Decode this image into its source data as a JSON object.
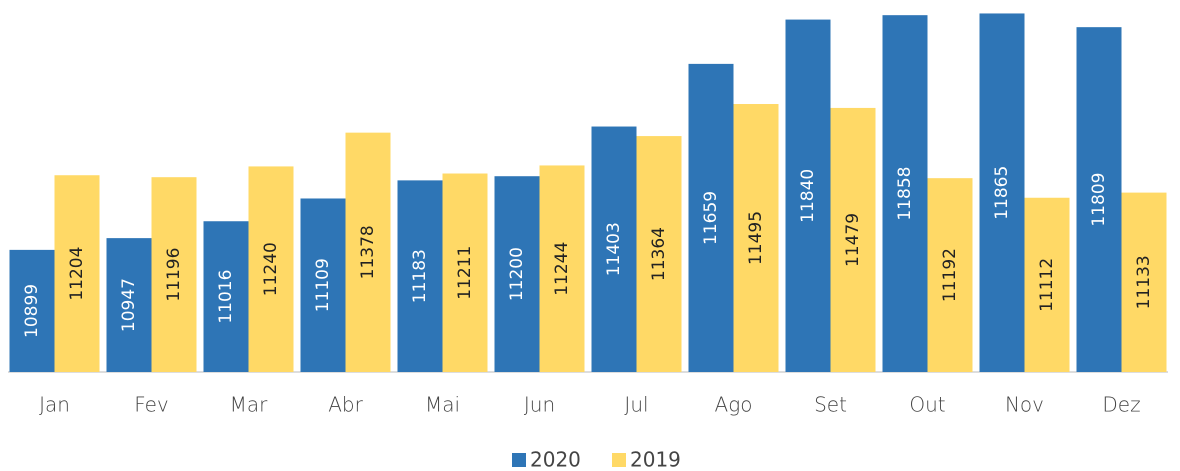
{
  "chart_data": {
    "type": "bar",
    "categories": [
      "Jan",
      "Fev",
      "Mar",
      "Abr",
      "Mai",
      "Jun",
      "Jul",
      "Ago",
      "Set",
      "Out",
      "Nov",
      "Dez"
    ],
    "series": [
      {
        "name": "2020",
        "color": "#2e75b6",
        "values": [
          10899,
          10947,
          11016,
          11109,
          11183,
          11200,
          11403,
          11659,
          11840,
          11858,
          11865,
          11809
        ]
      },
      {
        "name": "2019",
        "color": "#ffd966",
        "values": [
          11204,
          11196,
          11240,
          11378,
          11211,
          11244,
          11364,
          11495,
          11479,
          11192,
          11112,
          11133
        ]
      }
    ],
    "ylim": [
      10400,
      11920
    ]
  }
}
